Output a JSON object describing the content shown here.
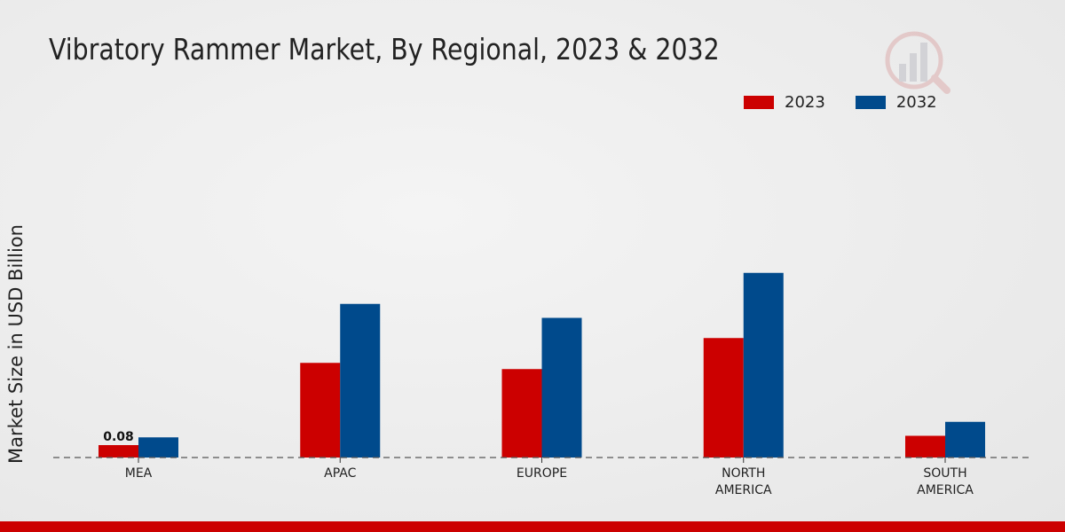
{
  "chart_data": {
    "type": "bar",
    "title": "Vibratory Rammer Market, By Regional, 2023 & 2032",
    "xlabel": "",
    "ylabel": "Market Size in USD Billion",
    "categories": [
      "MEA",
      "APAC",
      "EUROPE",
      "NORTH AMERICA",
      "SOUTH AMERICA"
    ],
    "category_lines": [
      [
        "MEA"
      ],
      [
        "APAC"
      ],
      [
        "EUROPE"
      ],
      [
        "NORTH",
        "AMERICA"
      ],
      [
        "SOUTH",
        "AMERICA"
      ]
    ],
    "series": [
      {
        "name": "2023",
        "color": "#cc0000",
        "values": [
          0.08,
          0.61,
          0.57,
          0.77,
          0.14
        ]
      },
      {
        "name": "2032",
        "color": "#004a8c",
        "values": [
          0.13,
          0.99,
          0.9,
          1.19,
          0.23
        ]
      }
    ],
    "data_labels": [
      {
        "series": "2023",
        "category": "MEA",
        "text": "0.08"
      }
    ],
    "legend_position": "top-right",
    "grid": false
  }
}
